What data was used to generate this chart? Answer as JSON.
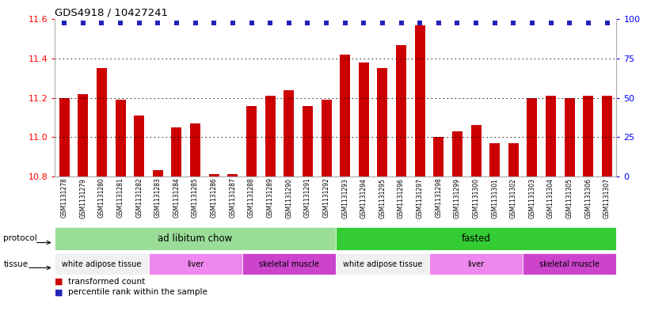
{
  "title": "GDS4918 / 10427241",
  "samples": [
    "GSM1131278",
    "GSM1131279",
    "GSM1131280",
    "GSM1131281",
    "GSM1131282",
    "GSM1131283",
    "GSM1131284",
    "GSM1131285",
    "GSM1131286",
    "GSM1131287",
    "GSM1131288",
    "GSM1131289",
    "GSM1131290",
    "GSM1131291",
    "GSM1131292",
    "GSM1131293",
    "GSM1131294",
    "GSM1131295",
    "GSM1131296",
    "GSM1131297",
    "GSM1131298",
    "GSM1131299",
    "GSM1131300",
    "GSM1131301",
    "GSM1131302",
    "GSM1131303",
    "GSM1131304",
    "GSM1131305",
    "GSM1131306",
    "GSM1131307"
  ],
  "bar_values": [
    11.2,
    11.22,
    11.35,
    11.19,
    11.11,
    10.83,
    11.05,
    11.07,
    10.81,
    10.81,
    11.16,
    11.21,
    11.24,
    11.16,
    11.19,
    11.42,
    11.38,
    11.35,
    11.47,
    11.57,
    11.0,
    11.03,
    11.06,
    10.97,
    10.97,
    11.2,
    11.21,
    11.2,
    11.21,
    11.21
  ],
  "ymin": 10.8,
  "ymax": 11.6,
  "yticks_left": [
    10.8,
    11.0,
    11.2,
    11.4,
    11.6
  ],
  "yticks_right": [
    0,
    25,
    50,
    75,
    100
  ],
  "bar_color": "#cc0000",
  "dot_color": "#2222bb",
  "protocol_groups": [
    {
      "label": "ad libitum chow",
      "start": 0,
      "end": 15,
      "color": "#99dd99"
    },
    {
      "label": "fasted",
      "start": 15,
      "end": 30,
      "color": "#33cc33"
    }
  ],
  "tissue_colors": {
    "white adipose tissue": "#f0f0f0",
    "liver": "#ee88ee",
    "skeletal muscle": "#cc44cc"
  },
  "tissue_groups": [
    {
      "label": "white adipose tissue",
      "start": 0,
      "end": 5
    },
    {
      "label": "liver",
      "start": 5,
      "end": 10
    },
    {
      "label": "skeletal muscle",
      "start": 10,
      "end": 15
    },
    {
      "label": "white adipose tissue",
      "start": 15,
      "end": 20
    },
    {
      "label": "liver",
      "start": 20,
      "end": 25
    },
    {
      "label": "skeletal muscle",
      "start": 25,
      "end": 30
    }
  ],
  "xlabel_bg_color": "#c8c8c8",
  "xlabel_border_color": "#ffffff",
  "fig_width": 8.46,
  "fig_height": 3.93
}
